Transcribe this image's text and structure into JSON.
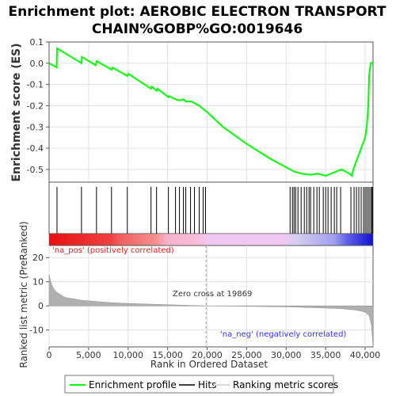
{
  "chart_data": {
    "type": "line",
    "title_line1": "Enrichment plot: AEROBIC ELECTRON TRANSPORT",
    "title_line2": "CHAIN%GOBP%GO:0019646",
    "ylabel_top": "Enrichment score (ES)",
    "ylabel_bottom": "Ranked list metric (PreRanked)",
    "xlabel": "Rank in Ordered Dataset",
    "xlim": [
      0,
      41000
    ],
    "x_ticks": [
      0,
      5000,
      10000,
      15000,
      20000,
      25000,
      30000,
      35000,
      40000
    ],
    "x_tick_labels": [
      "0",
      "5,000",
      "10,000",
      "15,000",
      "20,000",
      "25,000",
      "30,000",
      "35,000",
      "40,000"
    ],
    "es_ylim": [
      -0.56,
      0.1
    ],
    "es_ticks": [
      0.1,
      0.0,
      -0.1,
      -0.2,
      -0.3,
      -0.4,
      -0.5
    ],
    "es_tick_labels": [
      "0.1",
      "0.0",
      "-0.1",
      "-0.2",
      "-0.3",
      "-0.4",
      "-0.5"
    ],
    "metric_ylim": [
      -17,
      25
    ],
    "metric_ticks": [
      20,
      10,
      0,
      -10
    ],
    "metric_tick_labels": [
      "20",
      "10",
      "0",
      "-10"
    ],
    "es_profile": {
      "name": "Enrichment profile",
      "color": "#00ff00",
      "points": [
        [
          0,
          0.0
        ],
        [
          950,
          -0.02
        ],
        [
          1000,
          0.07
        ],
        [
          4100,
          0.0
        ],
        [
          4150,
          0.03
        ],
        [
          5900,
          -0.01
        ],
        [
          6000,
          0.01
        ],
        [
          7900,
          -0.03
        ],
        [
          8000,
          -0.02
        ],
        [
          9900,
          -0.06
        ],
        [
          10000,
          -0.05
        ],
        [
          12900,
          -0.12
        ],
        [
          13000,
          -0.11
        ],
        [
          13600,
          -0.13
        ],
        [
          13700,
          -0.12
        ],
        [
          15100,
          -0.16
        ],
        [
          15200,
          -0.155
        ],
        [
          16000,
          -0.17
        ],
        [
          16500,
          -0.175
        ],
        [
          17000,
          -0.17
        ],
        [
          17300,
          -0.18
        ],
        [
          18000,
          -0.18
        ],
        [
          19000,
          -0.2
        ],
        [
          20000,
          -0.23
        ],
        [
          22000,
          -0.3
        ],
        [
          25000,
          -0.38
        ],
        [
          28000,
          -0.45
        ],
        [
          30000,
          -0.49
        ],
        [
          31000,
          -0.51
        ],
        [
          32000,
          -0.52
        ],
        [
          33000,
          -0.525
        ],
        [
          34000,
          -0.52
        ],
        [
          35000,
          -0.53
        ],
        [
          36000,
          -0.515
        ],
        [
          37000,
          -0.5
        ],
        [
          38000,
          -0.52
        ],
        [
          38300,
          -0.53
        ],
        [
          38500,
          -0.5
        ],
        [
          39000,
          -0.45
        ],
        [
          39500,
          -0.4
        ],
        [
          40000,
          -0.35
        ],
        [
          40200,
          -0.3
        ],
        [
          40400,
          -0.2
        ],
        [
          40500,
          -0.06
        ],
        [
          40700,
          0.0
        ],
        [
          40900,
          0.005
        ]
      ]
    },
    "hits": [
      1000,
      4100,
      6000,
      7900,
      9900,
      12900,
      13600,
      15100,
      16000,
      16500,
      17000,
      17300,
      17900,
      18400,
      19000,
      19500,
      19800,
      30500,
      30800,
      31000,
      31200,
      31500,
      31900,
      32300,
      32600,
      32900,
      33100,
      33500,
      33900,
      34200,
      34700,
      35000,
      35300,
      35700,
      36100,
      36400,
      36900,
      38200,
      38600,
      38900,
      39200,
      39500,
      39800,
      40000,
      40200,
      40400,
      40600,
      40800,
      40900
    ],
    "zero_cross": 19869,
    "zero_cross_label": "Zero cross at 19869",
    "pos_label": "'na_pos' (positively correlated)",
    "neg_label": "'na_neg' (negatively correlated)",
    "metric_curve": [
      [
        0,
        13
      ],
      [
        300,
        9
      ],
      [
        600,
        7
      ],
      [
        1000,
        5.5
      ],
      [
        2000,
        3.5
      ],
      [
        4000,
        2.4
      ],
      [
        6000,
        1.8
      ],
      [
        8000,
        1.3
      ],
      [
        10000,
        1.0
      ],
      [
        14000,
        0.6
      ],
      [
        17000,
        0.3
      ],
      [
        19869,
        0.0
      ],
      [
        24000,
        -0.15
      ],
      [
        30000,
        -0.4
      ],
      [
        34000,
        -0.8
      ],
      [
        37000,
        -1.2
      ],
      [
        39000,
        -1.8
      ],
      [
        40000,
        -2.6
      ],
      [
        40500,
        -4.0
      ],
      [
        40800,
        -8.0
      ],
      [
        41000,
        -17.0
      ]
    ],
    "legend": [
      {
        "label": "Enrichment profile",
        "color": "#00ff00"
      },
      {
        "label": "Hits",
        "color": "#000000"
      },
      {
        "label": "Ranking metric scores",
        "color": "#d9d9d9"
      }
    ],
    "colors": {
      "pos_text": "#e02020",
      "neg_text": "#3030e0",
      "grid": "#e0e0e0"
    }
  }
}
